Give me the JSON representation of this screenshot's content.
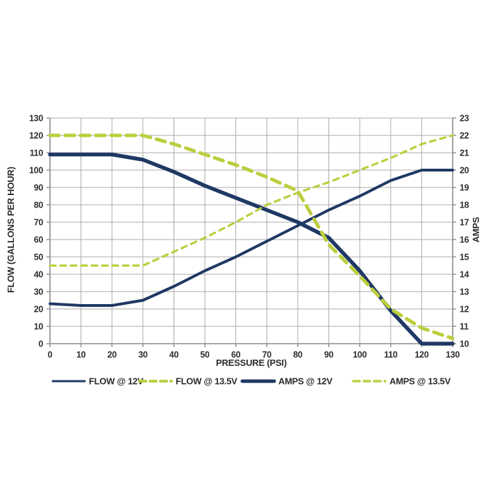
{
  "chart_data": {
    "type": "line",
    "title": "",
    "xlabel": "PRESSURE (PSI)",
    "ylabel_left": "FLOW (GALLONS PER HOUR)",
    "ylabel_right": "AMPS",
    "x": [
      0,
      10,
      20,
      30,
      40,
      50,
      60,
      70,
      80,
      90,
      100,
      110,
      120,
      130
    ],
    "x_ticks": [
      "0",
      "10",
      "20",
      "30",
      "40",
      "50",
      "60",
      "70",
      "80",
      "90",
      "100",
      "110",
      "120",
      "130"
    ],
    "y_left_ticks": [
      "0",
      "10",
      "20",
      "30",
      "40",
      "50",
      "60",
      "70",
      "80",
      "90",
      "100",
      "110",
      "120",
      "130"
    ],
    "y_right_ticks": [
      "10",
      "11",
      "12",
      "13",
      "14",
      "15",
      "16",
      "17",
      "18",
      "19",
      "20",
      "21",
      "22",
      "23"
    ],
    "x_range": [
      0,
      130
    ],
    "y_left_range": [
      0,
      130
    ],
    "y_right_range": [
      10,
      23
    ],
    "grid": true,
    "legend_position": "bottom",
    "series": [
      {
        "name": "FLOW @ 12V",
        "axis": "left",
        "color": "#1F3864",
        "style": "solid",
        "values": [
          109,
          109,
          109,
          106,
          99,
          91,
          84,
          77,
          70,
          61,
          42,
          19,
          0,
          0
        ]
      },
      {
        "name": "FLOW @ 13.5V",
        "axis": "left",
        "color": "#BCCE3E",
        "style": "dashed",
        "values": [
          120,
          120,
          120,
          120,
          115,
          109,
          103,
          96,
          88,
          57,
          39,
          20,
          9,
          3
        ]
      },
      {
        "name": "AMPS @ 12V",
        "axis": "right",
        "color": "#1F3864",
        "style": "solid",
        "values": [
          12.3,
          12.2,
          12.2,
          12.5,
          13.3,
          14.2,
          15,
          15.9,
          16.8,
          17.7,
          18.5,
          19.4,
          20,
          20
        ]
      },
      {
        "name": "AMPS @ 13.5V",
        "axis": "right",
        "color": "#BCCE3E",
        "style": "dashed",
        "values": [
          14.5,
          14.5,
          14.5,
          14.5,
          15.3,
          16.1,
          17,
          18,
          18.7,
          19.3,
          20,
          20.7,
          21.5,
          22
        ]
      }
    ],
    "colors": {
      "grid": "#ABABAB",
      "axis": "#8A8A8A",
      "text": "#2B2B2B"
    }
  }
}
